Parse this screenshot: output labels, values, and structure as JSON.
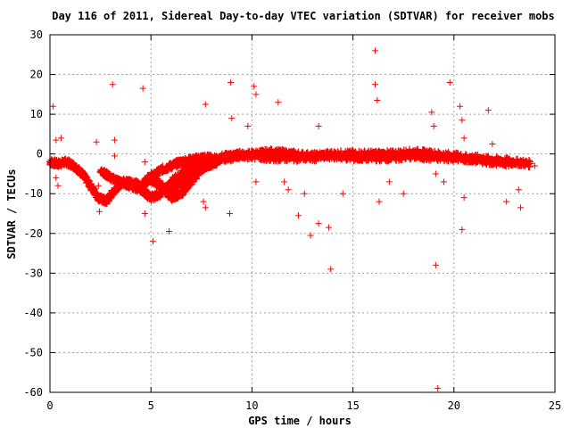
{
  "chart_data": {
    "type": "scatter",
    "title": "Day 116 of 2011, Sidereal Day-to-day VTEC variation (SDTVAR) for receiver mobs",
    "xlabel": "GPS time / hours",
    "ylabel": "SDTVAR / TECUs",
    "xlim": [
      0,
      25
    ],
    "ylim": [
      -60,
      30
    ],
    "xticks": [
      "0",
      "5",
      "10",
      "15",
      "20",
      "25"
    ],
    "yticks": [
      "30",
      "20",
      "10",
      "0",
      "-10",
      "-20",
      "-30",
      "-40",
      "-50",
      "-60"
    ],
    "grid": true,
    "marker": "+",
    "colors": {
      "series": "#ff0000",
      "grid": "#a0a0a0",
      "axis": "#000000"
    },
    "series": [
      {
        "dense_tracks": [
          [
            [
              0.0,
              -2
            ],
            [
              0.4,
              -2.5
            ],
            [
              0.8,
              -2
            ],
            [
              1.2,
              -3
            ],
            [
              1.6,
              -5
            ],
            [
              2.0,
              -8
            ],
            [
              2.4,
              -11
            ],
            [
              2.8,
              -12
            ],
            [
              3.2,
              -9
            ],
            [
              3.6,
              -7
            ],
            [
              4.0,
              -7
            ],
            [
              4.5,
              -8
            ],
            [
              5.0,
              -6
            ],
            [
              5.5,
              -4
            ],
            [
              6.0,
              -3
            ],
            [
              6.5,
              -2
            ],
            [
              7.0,
              -1.5
            ],
            [
              7.5,
              -1
            ],
            [
              8.0,
              -1
            ],
            [
              9.0,
              -0.5
            ],
            [
              10.0,
              0
            ],
            [
              11.0,
              0.5
            ],
            [
              12.0,
              0
            ],
            [
              13.0,
              -0.5
            ],
            [
              14.0,
              0
            ],
            [
              15.0,
              0
            ],
            [
              16.0,
              0
            ],
            [
              17.0,
              0
            ],
            [
              18.0,
              0.5
            ],
            [
              19.0,
              0
            ],
            [
              20.0,
              -0.5
            ],
            [
              21.0,
              -1
            ],
            [
              22.0,
              -1.5
            ],
            [
              23.0,
              -2
            ],
            [
              23.8,
              -2.5
            ]
          ],
          [
            [
              2.5,
              -4
            ],
            [
              3.0,
              -6
            ],
            [
              3.5,
              -7
            ],
            [
              4.0,
              -8
            ],
            [
              4.5,
              -9
            ],
            [
              5.0,
              -11
            ],
            [
              5.5,
              -10
            ],
            [
              6.0,
              -7
            ],
            [
              6.5,
              -5
            ],
            [
              7.0,
              -3
            ],
            [
              7.5,
              -2
            ],
            [
              8.0,
              -1.5
            ],
            [
              9.0,
              -1
            ],
            [
              10.0,
              -0.5
            ],
            [
              11.0,
              -1
            ],
            [
              12.0,
              -1
            ],
            [
              13.0,
              -1
            ],
            [
              14.0,
              -0.5
            ],
            [
              15.0,
              -1
            ],
            [
              16.0,
              -1
            ],
            [
              17.0,
              -1
            ],
            [
              18.0,
              -0.5
            ],
            [
              19.0,
              -1
            ],
            [
              20.0,
              -1
            ],
            [
              21.0,
              -1.5
            ],
            [
              22.0,
              -2
            ],
            [
              23.0,
              -2.5
            ]
          ],
          [
            [
              5.0,
              -5
            ],
            [
              5.5,
              -8
            ],
            [
              6.0,
              -11
            ],
            [
              6.5,
              -10
            ],
            [
              7.0,
              -7
            ],
            [
              7.5,
              -4
            ],
            [
              8.0,
              -2
            ],
            [
              8.5,
              -1
            ],
            [
              9.0,
              -0.5
            ],
            [
              9.5,
              0
            ]
          ],
          [
            [
              4.8,
              -6
            ],
            [
              5.2,
              -7
            ],
            [
              5.8,
              -9
            ],
            [
              6.3,
              -8
            ],
            [
              6.8,
              -6
            ],
            [
              7.3,
              -4
            ],
            [
              7.8,
              -3
            ],
            [
              8.3,
              -2
            ]
          ]
        ],
        "outliers": [
          [
            0.15,
            12
          ],
          [
            0.3,
            3.5
          ],
          [
            0.3,
            -6
          ],
          [
            0.4,
            -8
          ],
          [
            0.55,
            4
          ],
          [
            2.3,
            3
          ],
          [
            2.4,
            -8
          ],
          [
            2.45,
            -14.5
          ],
          [
            3.1,
            17.5
          ],
          [
            3.2,
            3.5
          ],
          [
            3.2,
            -0.5
          ],
          [
            4.6,
            16.5
          ],
          [
            4.7,
            -2
          ],
          [
            4.7,
            -15
          ],
          [
            5.1,
            -22
          ],
          [
            5.9,
            -19.5
          ],
          [
            7.6,
            -12
          ],
          [
            7.7,
            12.5
          ],
          [
            7.7,
            -13.5
          ],
          [
            8.9,
            -15
          ],
          [
            8.95,
            18
          ],
          [
            9.0,
            9
          ],
          [
            9.8,
            7
          ],
          [
            10.1,
            17
          ],
          [
            10.2,
            15
          ],
          [
            10.2,
            -7
          ],
          [
            11.3,
            13
          ],
          [
            11.6,
            -7
          ],
          [
            11.8,
            -9
          ],
          [
            12.3,
            -15.5
          ],
          [
            12.6,
            -10
          ],
          [
            12.9,
            -20.5
          ],
          [
            13.3,
            -17.5
          ],
          [
            13.3,
            7
          ],
          [
            13.8,
            -18.5
          ],
          [
            13.9,
            -29
          ],
          [
            14.5,
            -10
          ],
          [
            16.1,
            26
          ],
          [
            16.1,
            17.5
          ],
          [
            16.2,
            13.5
          ],
          [
            16.3,
            -12
          ],
          [
            16.8,
            -7
          ],
          [
            17.5,
            -10
          ],
          [
            18.9,
            10.5
          ],
          [
            19.0,
            7
          ],
          [
            19.1,
            -5
          ],
          [
            19.1,
            -28
          ],
          [
            19.2,
            -59
          ],
          [
            19.5,
            -7
          ],
          [
            19.8,
            18
          ],
          [
            20.3,
            12
          ],
          [
            20.4,
            8.5
          ],
          [
            20.4,
            -19
          ],
          [
            20.5,
            4
          ],
          [
            20.5,
            -11
          ],
          [
            21.7,
            11
          ],
          [
            21.9,
            2.5
          ],
          [
            22.6,
            -12
          ],
          [
            23.2,
            -9
          ],
          [
            23.3,
            -13.5
          ],
          [
            24.0,
            -3
          ]
        ]
      }
    ]
  }
}
